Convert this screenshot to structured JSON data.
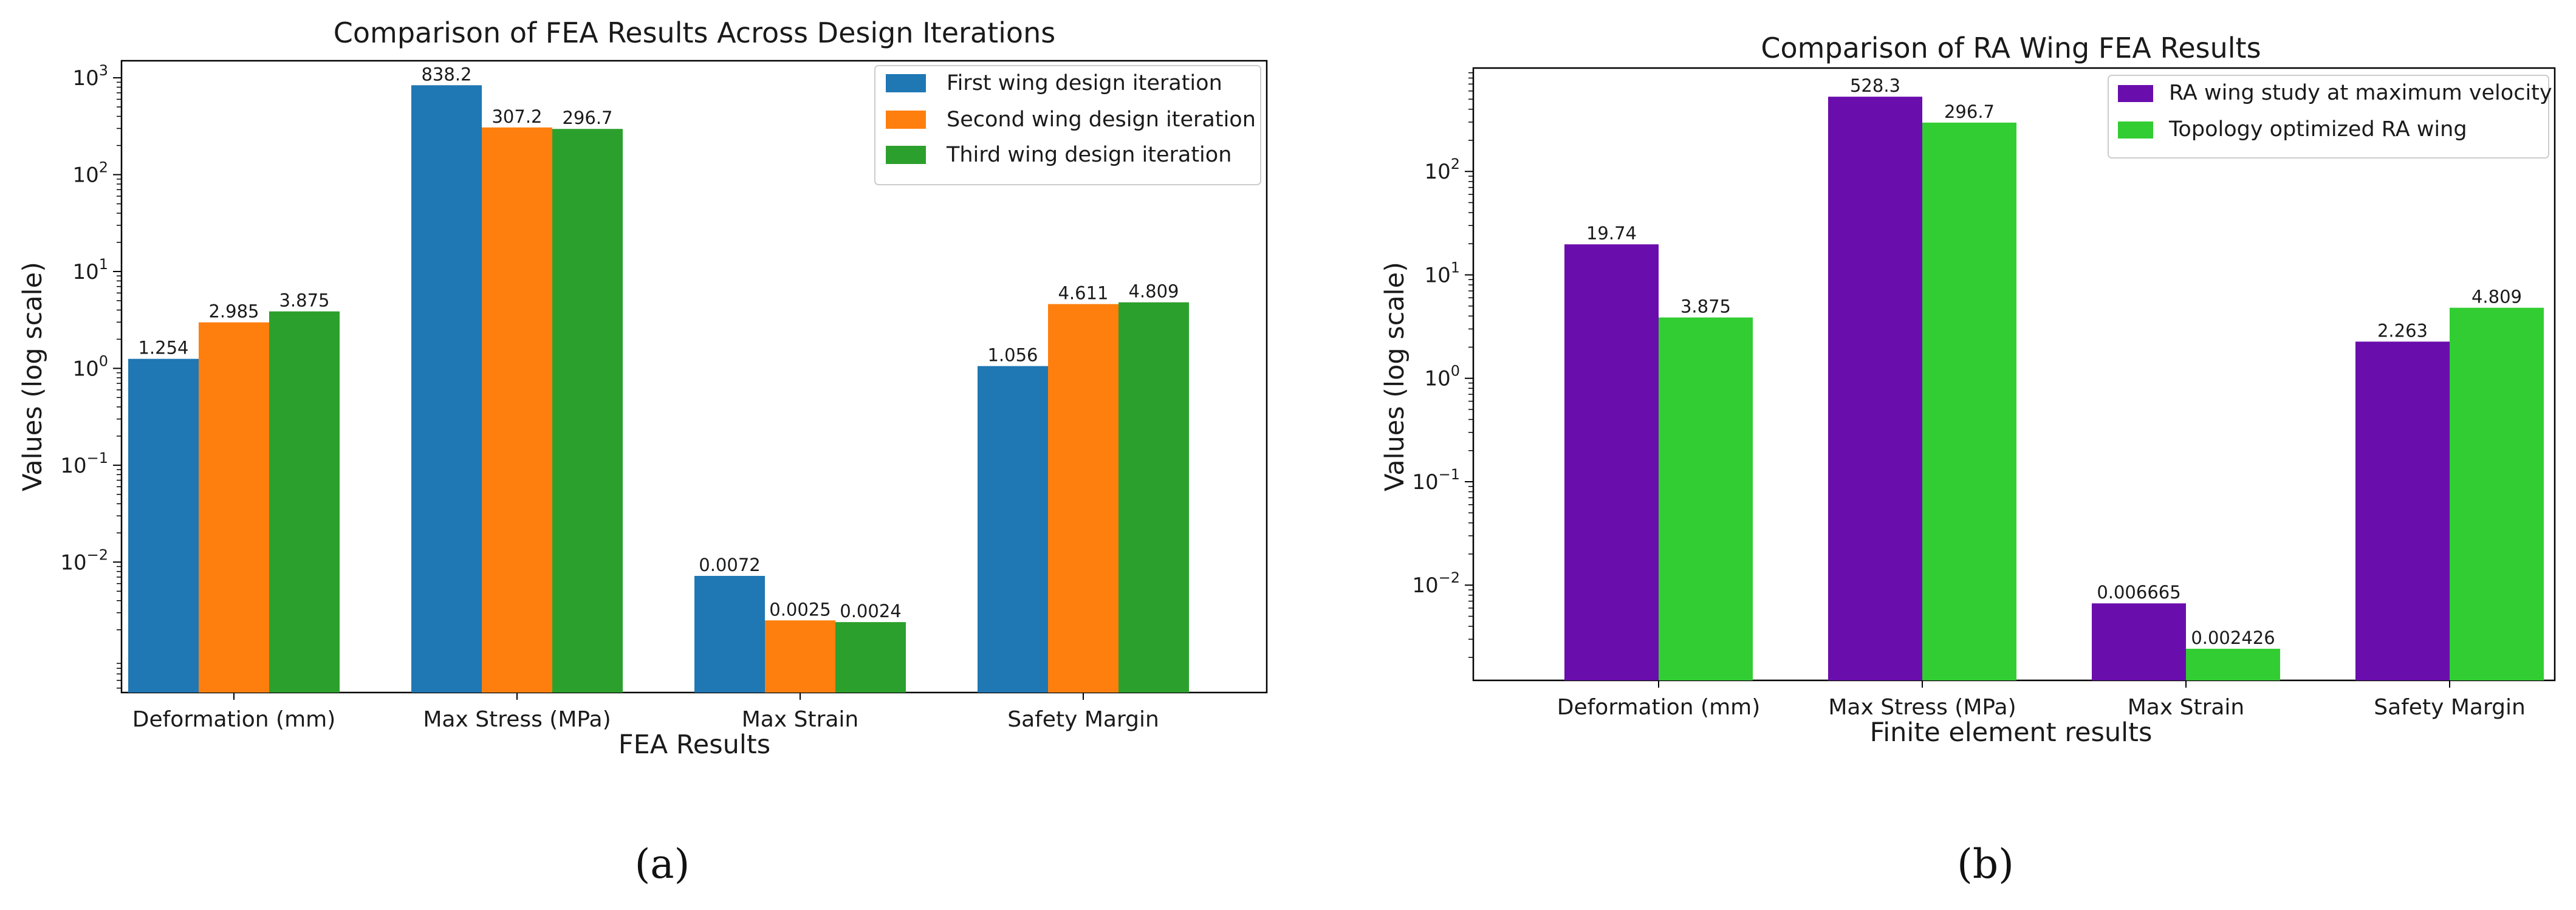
{
  "chart_data": [
    {
      "type": "bar",
      "panel_label": "(a)",
      "title": "Comparison of FEA Results Across Design Iterations",
      "xlabel": "FEA Results",
      "ylabel": "Values (log scale)",
      "yscale": "log",
      "ylim": [
        0.00045,
        1500
      ],
      "yticks": [
        {
          "base": "10",
          "exp": "−2",
          "value": 0.01
        },
        {
          "base": "10",
          "exp": "−1",
          "value": 0.1
        },
        {
          "base": "10",
          "exp": "0",
          "value": 1
        },
        {
          "base": "10",
          "exp": "1",
          "value": 10
        },
        {
          "base": "10",
          "exp": "2",
          "value": 100
        },
        {
          "base": "10",
          "exp": "3",
          "value": 1000
        }
      ],
      "categories": [
        "Deformation (mm)",
        "Max Stress (MPa)",
        "Max Strain",
        "Safety Margin"
      ],
      "legend_position": "top-right",
      "series": [
        {
          "name": "First wing design iteration",
          "color": "#1f77b4",
          "values": [
            1.254,
            838.2,
            0.0072,
            1.056
          ],
          "labels": [
            "1.254",
            "838.2",
            "0.0072",
            "1.056"
          ]
        },
        {
          "name": "Second wing design iteration",
          "color": "#ff7f0e",
          "values": [
            2.985,
            307.2,
            0.0025,
            4.611
          ],
          "labels": [
            "2.985",
            "307.2",
            "0.0025",
            "4.611"
          ]
        },
        {
          "name": "Third wing design iteration",
          "color": "#2ca02c",
          "values": [
            3.875,
            296.7,
            0.0024,
            4.809
          ],
          "labels": [
            "3.875",
            "296.7",
            "0.0024",
            "4.809"
          ]
        }
      ]
    },
    {
      "type": "bar",
      "panel_label": "(b)",
      "title": "Comparison of RA Wing FEA Results",
      "xlabel": "Finite element results",
      "ylabel": "Values (log scale)",
      "yscale": "log",
      "ylim": [
        0.0012,
        1000
      ],
      "yticks": [
        {
          "base": "10",
          "exp": "−2",
          "value": 0.01
        },
        {
          "base": "10",
          "exp": "−1",
          "value": 0.1
        },
        {
          "base": "10",
          "exp": "0",
          "value": 1
        },
        {
          "base": "10",
          "exp": "1",
          "value": 10
        },
        {
          "base": "10",
          "exp": "2",
          "value": 100
        }
      ],
      "categories": [
        "Deformation (mm)",
        "Max Stress (MPa)",
        "Max Strain",
        "Safety Margin"
      ],
      "legend_position": "top-right",
      "series": [
        {
          "name": "RA wing study at maximum velocity",
          "color": "#6a0dad",
          "values": [
            19.74,
            528.3,
            0.006665,
            2.263
          ],
          "labels": [
            "19.74",
            "528.3",
            "0.006665",
            "2.263"
          ]
        },
        {
          "name": "Topology optimized RA wing",
          "color": "#32cd32",
          "values": [
            3.875,
            296.7,
            0.002426,
            4.809
          ],
          "labels": [
            "3.875",
            "296.7",
            "0.002426",
            "4.809"
          ]
        }
      ]
    }
  ]
}
